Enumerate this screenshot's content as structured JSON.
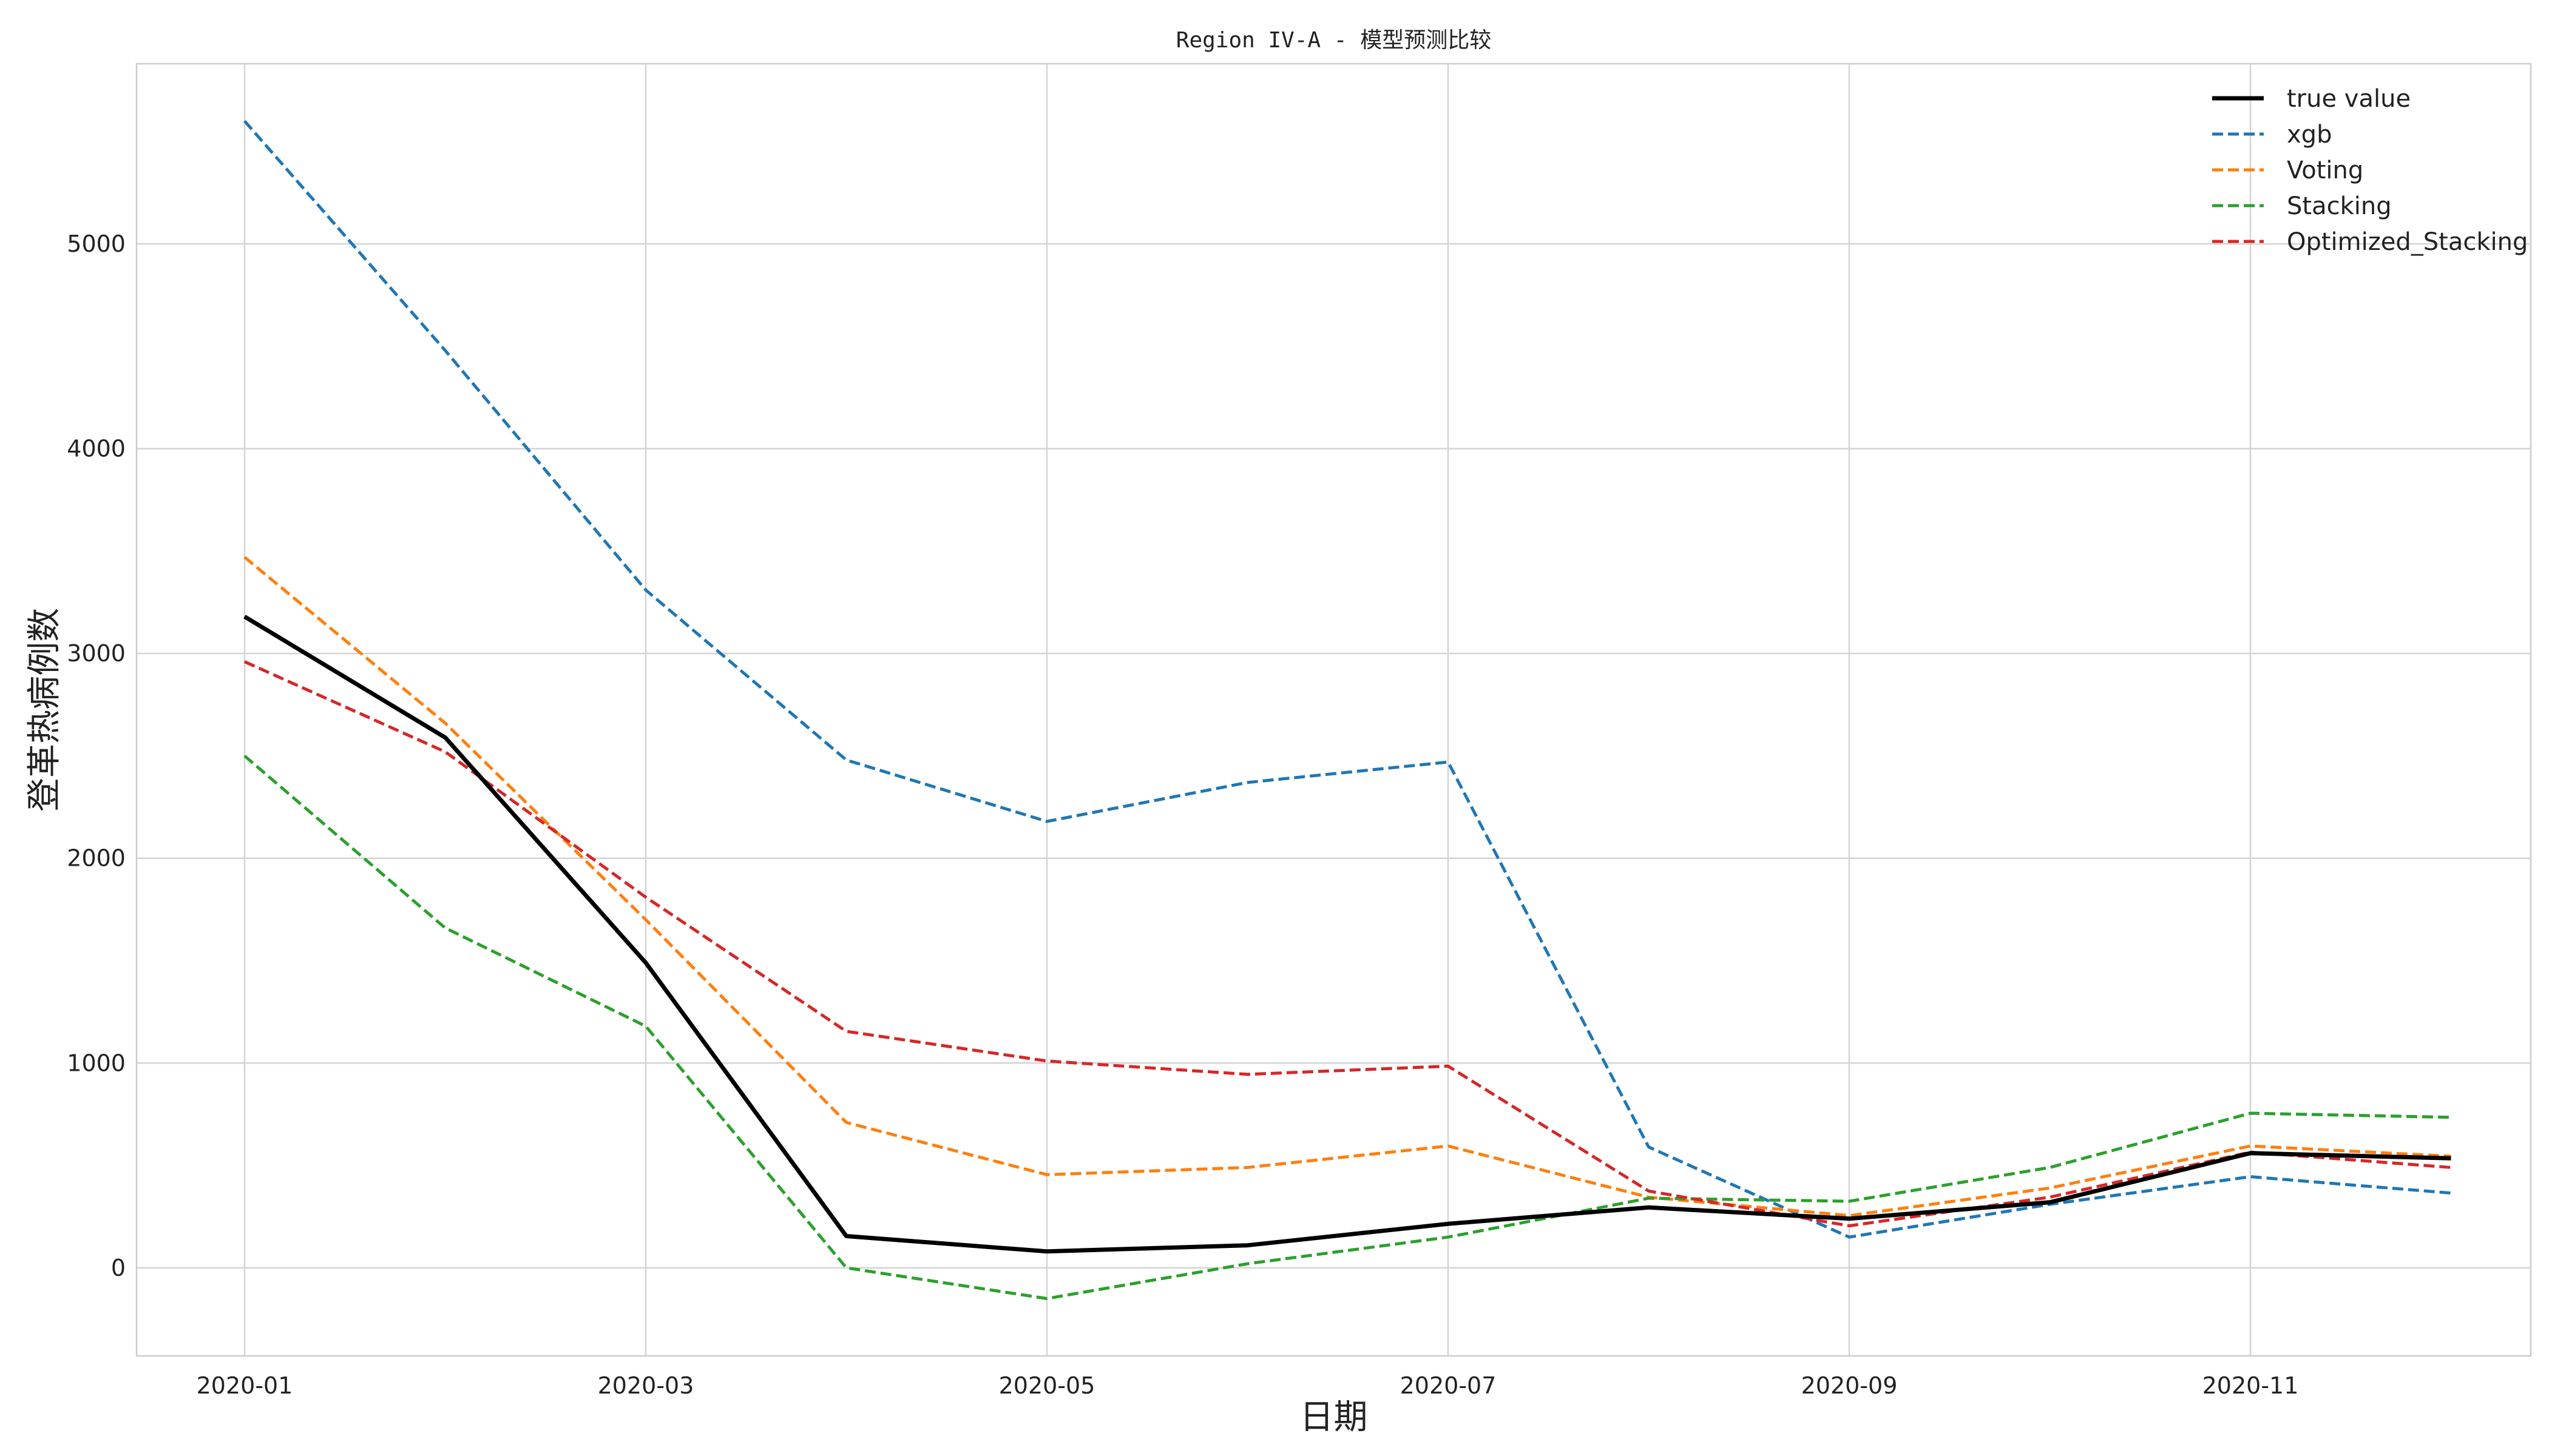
{
  "chart_data": {
    "type": "line",
    "title": "Region IV-A - 模型预测比较",
    "xlabel": "日期",
    "ylabel": "登革热病例数",
    "x": [
      "2020-01",
      "2020-02",
      "2020-03",
      "2020-04",
      "2020-05",
      "2020-06",
      "2020-07",
      "2020-08",
      "2020-09",
      "2020-10",
      "2020-11",
      "2020-12"
    ],
    "x_tick_labels": [
      "2020-01",
      "2020-03",
      "2020-05",
      "2020-07",
      "2020-09",
      "2020-11"
    ],
    "y_tick_labels": [
      "0",
      "1000",
      "2000",
      "3000",
      "4000",
      "5000"
    ],
    "yticks": [
      0,
      1000,
      2000,
      3000,
      4000,
      5000
    ],
    "ylim": [
      -430,
      5880
    ],
    "grid": true,
    "legend_position": "top-right",
    "series": [
      {
        "name": "true value",
        "style": "solid",
        "color": "#000000",
        "values": [
          3180,
          2590,
          1490,
          155,
          80,
          110,
          215,
          295,
          240,
          320,
          560,
          535
        ]
      },
      {
        "name": "xgb",
        "style": "dashed",
        "color": "#1f77b4",
        "values": [
          5600,
          4480,
          3310,
          2480,
          2180,
          2370,
          2470,
          590,
          150,
          310,
          445,
          365
        ]
      },
      {
        "name": "Voting",
        "style": "dashed",
        "color": "#ff7f0e",
        "values": [
          3470,
          2660,
          1700,
          710,
          455,
          490,
          595,
          345,
          255,
          390,
          595,
          545
        ]
      },
      {
        "name": "Stacking",
        "style": "dashed",
        "color": "#2ca02c",
        "values": [
          2500,
          1660,
          1180,
          0,
          -150,
          20,
          150,
          340,
          325,
          490,
          755,
          735
        ]
      },
      {
        "name": "Optimized_Stacking",
        "style": "dashed",
        "color": "#d62728",
        "values": [
          2960,
          2520,
          1810,
          1155,
          1010,
          945,
          985,
          375,
          205,
          345,
          565,
          490
        ]
      }
    ]
  }
}
